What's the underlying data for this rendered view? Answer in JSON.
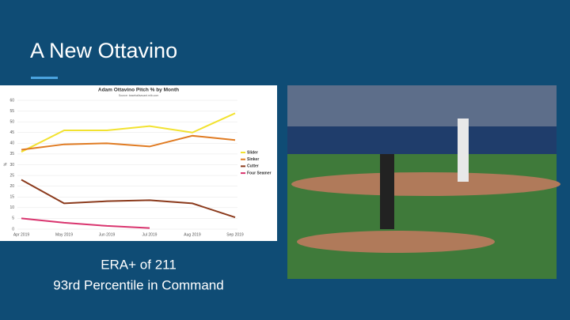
{
  "slide": {
    "title": "A New Ottavino",
    "lines": [
      "ERA+ of 211",
      "93rd Percentile in Command"
    ]
  },
  "chart_data": {
    "type": "line",
    "title": "Adam Ottavino Pitch % by Month",
    "subtitle": "Source: baseballsavant.mlb.com",
    "y_label": "%",
    "categories": [
      "Apr 2019",
      "May 2019",
      "Jun 2019",
      "Jul 2019",
      "Aug 2019",
      "Sep 2019"
    ],
    "series": [
      {
        "name": "Slider",
        "color": "#f2e230",
        "values": [
          36,
          46,
          46,
          48,
          45,
          54
        ]
      },
      {
        "name": "Sinker",
        "color": "#e07b22",
        "values": [
          37,
          39.5,
          40,
          38.5,
          43.5,
          41.5
        ]
      },
      {
        "name": "Cutter",
        "color": "#8b3a1c",
        "values": [
          23,
          12,
          13,
          13.5,
          12,
          5.5
        ]
      },
      {
        "name": "Four Seamer",
        "color": "#d9346e",
        "values": [
          5,
          3,
          1.5,
          0.5,
          null,
          null
        ]
      }
    ],
    "ylim": [
      0,
      60
    ],
    "yticks": [
      0,
      5,
      10,
      15,
      20,
      25,
      30,
      35,
      40,
      45,
      50,
      55,
      60
    ],
    "grid": true,
    "legend": "right"
  }
}
